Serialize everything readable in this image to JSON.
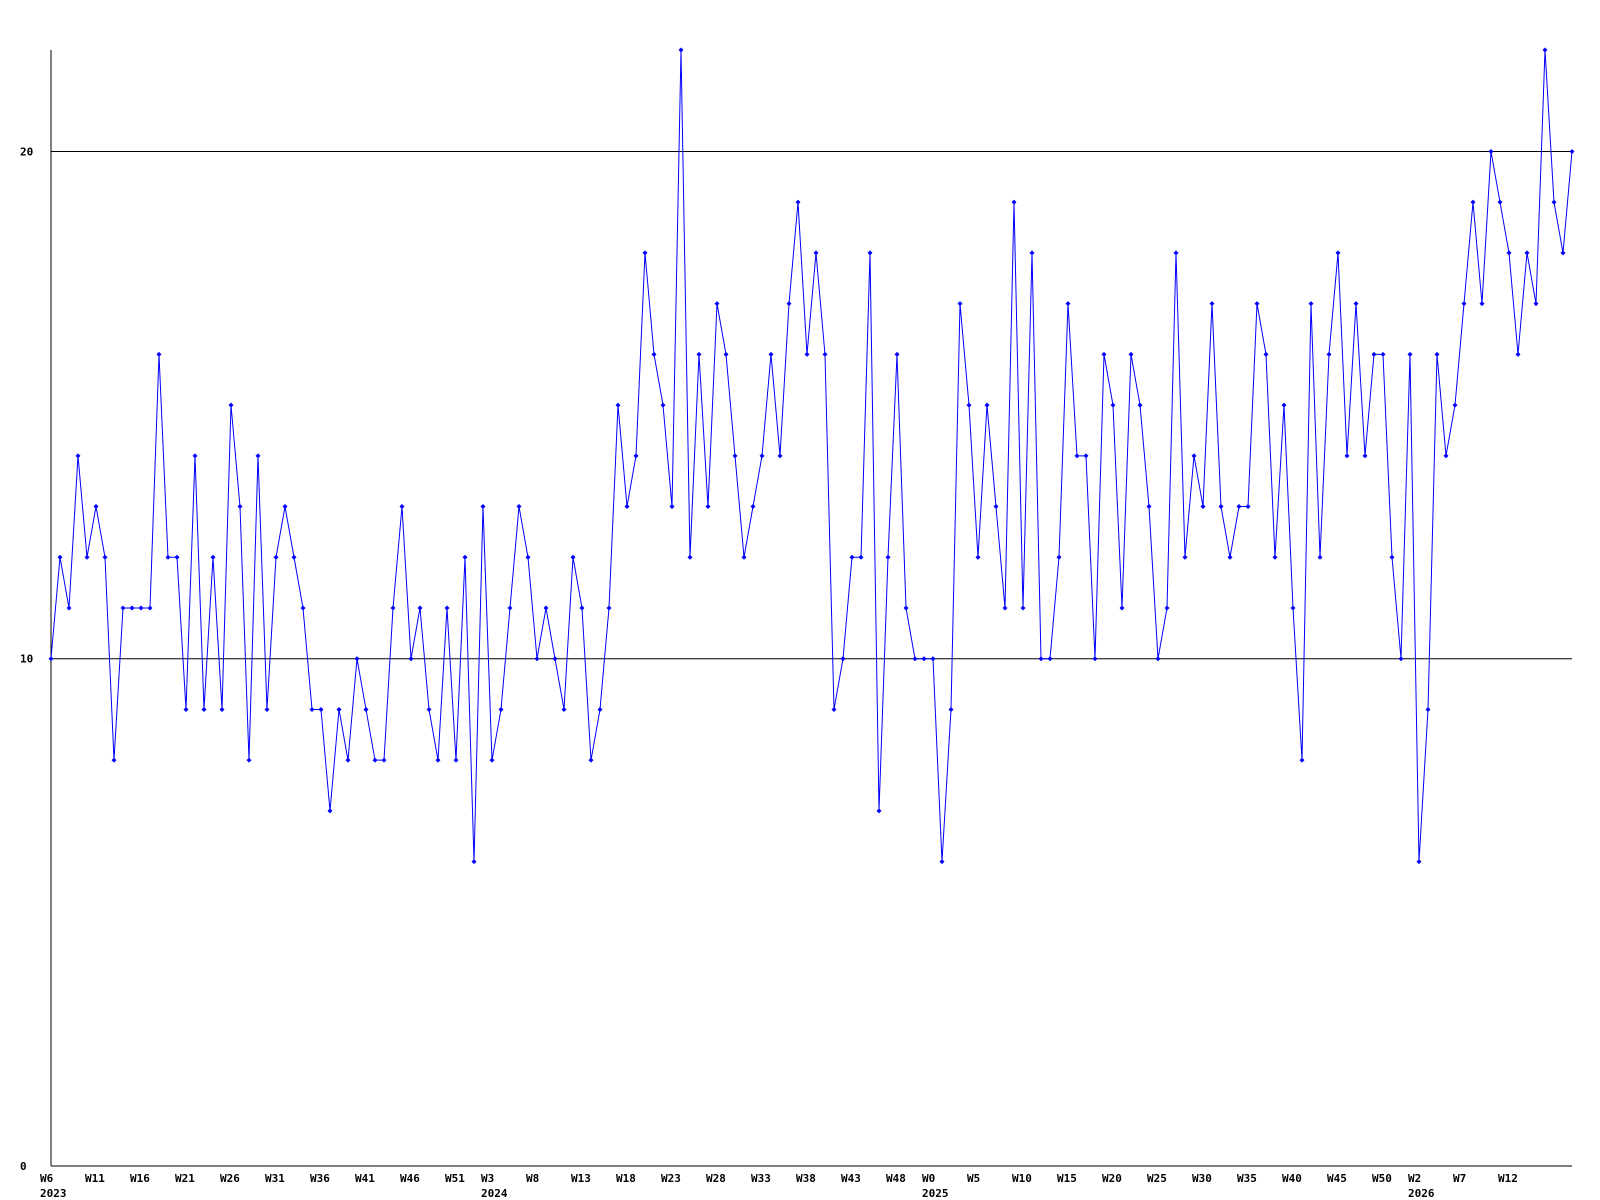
{
  "chart_data": {
    "type": "line",
    "categories": [
      "W6",
      null,
      null,
      null,
      null,
      "W11",
      null,
      null,
      null,
      null,
      "W16",
      null,
      null,
      null,
      null,
      "W21",
      null,
      null,
      null,
      null,
      "W26",
      null,
      null,
      null,
      null,
      "W31",
      null,
      null,
      null,
      null,
      "W36",
      null,
      null,
      null,
      null,
      "W41",
      null,
      null,
      null,
      null,
      "W46",
      null,
      null,
      null,
      null,
      "W51",
      null,
      null,
      null,
      "W3",
      null,
      null,
      null,
      null,
      "W8",
      null,
      null,
      null,
      null,
      "W13",
      null,
      null,
      null,
      null,
      "W18",
      null,
      null,
      null,
      null,
      "W23",
      null,
      null,
      null,
      null,
      "W28",
      null,
      null,
      null,
      null,
      "W33",
      null,
      null,
      null,
      null,
      "W38",
      null,
      null,
      null,
      null,
      "W43",
      null,
      null,
      null,
      null,
      "W48",
      null,
      null,
      null,
      "W0",
      null,
      null,
      null,
      null,
      "W5",
      null,
      null,
      null,
      null,
      "W10",
      null,
      null,
      null,
      null,
      "W15",
      null,
      null,
      null,
      null,
      "W20",
      null,
      null,
      null,
      null,
      "W25",
      null,
      null,
      null,
      null,
      "W30",
      null,
      null,
      null,
      null,
      "W35",
      null,
      null,
      null,
      null,
      "W40",
      null,
      null,
      null,
      null,
      "W45",
      null,
      null,
      null,
      null,
      "W50",
      null,
      null,
      null,
      "W2",
      null,
      null,
      null,
      null,
      "W7",
      null,
      null,
      null,
      null,
      "W12",
      null,
      null,
      null,
      null,
      null,
      null,
      null
    ],
    "years": [
      "2023",
      null,
      null,
      null,
      null,
      null,
      null,
      null,
      null,
      null,
      null,
      null,
      null,
      null,
      null,
      null,
      null,
      null,
      null,
      null,
      null,
      null,
      null,
      null,
      null,
      null,
      null,
      null,
      null,
      null,
      null,
      null,
      null,
      null,
      null,
      null,
      null,
      null,
      null,
      null,
      null,
      null,
      null,
      null,
      null,
      null,
      null,
      null,
      null,
      "2024",
      null,
      null,
      null,
      null,
      null,
      null,
      null,
      null,
      null,
      null,
      null,
      null,
      null,
      null,
      null,
      null,
      null,
      null,
      null,
      null,
      null,
      null,
      null,
      null,
      null,
      null,
      null,
      null,
      null,
      null,
      null,
      null,
      null,
      null,
      null,
      null,
      null,
      null,
      null,
      null,
      null,
      null,
      null,
      null,
      null,
      null,
      null,
      null,
      "2025",
      null,
      null,
      null,
      null,
      null,
      null,
      null,
      null,
      null,
      null,
      null,
      null,
      null,
      null,
      null,
      null,
      null,
      null,
      null,
      null,
      null,
      null,
      null,
      null,
      null,
      null,
      null,
      null,
      null,
      null,
      null,
      null,
      null,
      null,
      null,
      null,
      null,
      null,
      null,
      null,
      null,
      null,
      null,
      null,
      null,
      null,
      null,
      null,
      null,
      null,
      null,
      null,
      null,
      "2026",
      null,
      null,
      null,
      null,
      null,
      null,
      null,
      null,
      null,
      null,
      null,
      null,
      null,
      null,
      null,
      null,
      null
    ],
    "series": [
      {
        "color": "#0000ff",
        "values": [
          10,
          12,
          11,
          14,
          12,
          13,
          12,
          8,
          11,
          11,
          11,
          11,
          16,
          12,
          12,
          9,
          14,
          9,
          12,
          9,
          15,
          13,
          8,
          14,
          9,
          12,
          13,
          12,
          11,
          9,
          9,
          7,
          9,
          8,
          10,
          9,
          8,
          8,
          11,
          13,
          10,
          11,
          9,
          8,
          11,
          8,
          12,
          6,
          13,
          8,
          9,
          11,
          13,
          12,
          10,
          11,
          10,
          9,
          12,
          11,
          8,
          9,
          11,
          15,
          13,
          14,
          18,
          16,
          15,
          13,
          22,
          12,
          16,
          13,
          17,
          16,
          14,
          12,
          13,
          14,
          16,
          14,
          17,
          19,
          16,
          18,
          16,
          9,
          10,
          12,
          12,
          18,
          7,
          12,
          16,
          11,
          10,
          10,
          10,
          6,
          9,
          17,
          15,
          12,
          15,
          13,
          11,
          19,
          11,
          18,
          10,
          10,
          12,
          17,
          14,
          14,
          10,
          16,
          15,
          11,
          16,
          15,
          13,
          10,
          11,
          18,
          12,
          14,
          13,
          17,
          13,
          12,
          13,
          13,
          17,
          16,
          12,
          15,
          11,
          8,
          17,
          12,
          16,
          18,
          14,
          17,
          14,
          16,
          16,
          12,
          10,
          16,
          6,
          9,
          16,
          14,
          15,
          17,
          19,
          17,
          20,
          19,
          18,
          16,
          18,
          17,
          22,
          19,
          18,
          20
        ]
      }
    ],
    "ylim": [
      0,
      22
    ],
    "yticks": [
      0,
      10,
      20
    ],
    "grid": true
  }
}
